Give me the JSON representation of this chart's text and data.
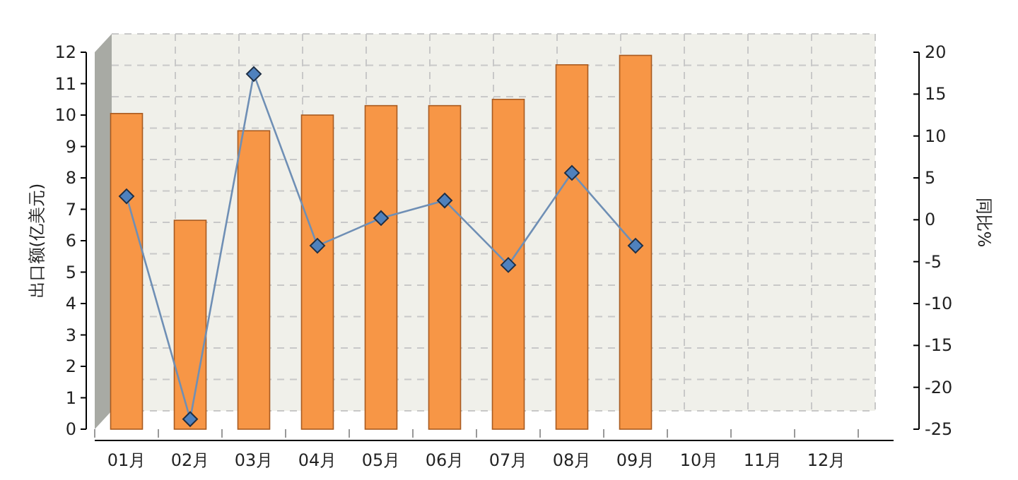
{
  "chart_data": {
    "type": "bar",
    "categories": [
      "01月",
      "02月",
      "03月",
      "04月",
      "05月",
      "06月",
      "07月",
      "08月",
      "09月",
      "10月",
      "11月",
      "12月"
    ],
    "series": [
      {
        "color": "#f79646",
        "values": [
          10.05,
          6.65,
          9.5,
          10.0,
          10.3,
          10.3,
          10.5,
          11.6,
          11.9,
          null,
          null,
          null
        ]
      },
      {
        "type": "line",
        "axis": "y2",
        "color": "#4f81bd",
        "values": [
          2.8,
          -23.8,
          17.4,
          -3.1,
          0.2,
          2.3,
          -5.4,
          5.6,
          -3.1,
          null,
          null,
          null
        ]
      }
    ],
    "ylabel": "出口额(亿美元)",
    "y2label": "同比%",
    "ylim": [
      0,
      12
    ],
    "yticks": [
      0,
      1,
      2,
      3,
      4,
      5,
      6,
      7,
      8,
      9,
      10,
      11,
      12
    ],
    "y2lim": [
      -25,
      20
    ],
    "y2ticks": [
      -25,
      -20,
      -15,
      -10,
      -5,
      0,
      5,
      10,
      15,
      20
    ],
    "grid": true,
    "marker": "diamond"
  }
}
